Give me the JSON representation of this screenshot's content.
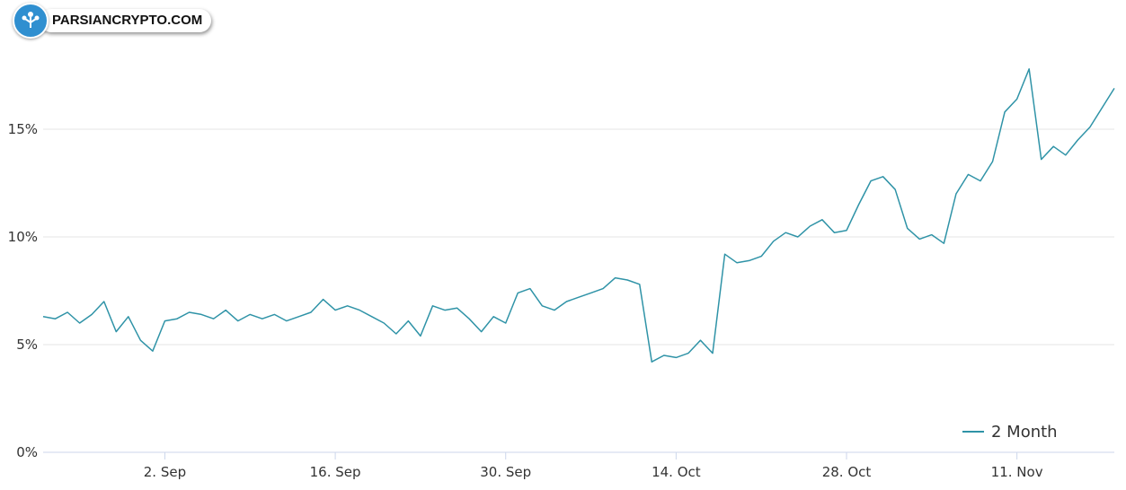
{
  "logo": {
    "text": "PARSIANCRYPTO.COM",
    "badge_color": "#2f8fd0"
  },
  "chart_data": {
    "type": "line",
    "title": "",
    "xlabel": "",
    "ylabel": "",
    "ylim": [
      0,
      20
    ],
    "yticks": [
      0,
      5,
      10,
      15
    ],
    "ytick_labels": [
      "0%",
      "5%",
      "10%",
      "15%"
    ],
    "xlim": [
      "2024-08-23",
      "2024-11-19"
    ],
    "xticks": [
      "2024-09-02",
      "2024-09-16",
      "2024-09-30",
      "2024-10-14",
      "2024-10-28",
      "2024-11-11"
    ],
    "xtick_labels": [
      "2. Sep",
      "16. Sep",
      "30. Sep",
      "14. Oct",
      "28. Oct",
      "11. Nov"
    ],
    "grid": "horizontal",
    "legend_position": "bottom-right",
    "colors": {
      "line": "#2f93a7",
      "grid": "#e6e6e6",
      "axis": "#ccd6eb"
    },
    "series": [
      {
        "name": "2 Month",
        "x": [
          "2024-08-23",
          "2024-08-24",
          "2024-08-25",
          "2024-08-26",
          "2024-08-27",
          "2024-08-28",
          "2024-08-29",
          "2024-08-30",
          "2024-08-31",
          "2024-09-01",
          "2024-09-02",
          "2024-09-03",
          "2024-09-04",
          "2024-09-05",
          "2024-09-06",
          "2024-09-07",
          "2024-09-08",
          "2024-09-09",
          "2024-09-10",
          "2024-09-11",
          "2024-09-12",
          "2024-09-13",
          "2024-09-14",
          "2024-09-15",
          "2024-09-16",
          "2024-09-17",
          "2024-09-18",
          "2024-09-19",
          "2024-09-20",
          "2024-09-21",
          "2024-09-22",
          "2024-09-23",
          "2024-09-24",
          "2024-09-25",
          "2024-09-26",
          "2024-09-27",
          "2024-09-28",
          "2024-09-29",
          "2024-09-30",
          "2024-10-01",
          "2024-10-02",
          "2024-10-03",
          "2024-10-04",
          "2024-10-05",
          "2024-10-06",
          "2024-10-07",
          "2024-10-08",
          "2024-10-09",
          "2024-10-10",
          "2024-10-11",
          "2024-10-12",
          "2024-10-13",
          "2024-10-14",
          "2024-10-15",
          "2024-10-16",
          "2024-10-17",
          "2024-10-18",
          "2024-10-19",
          "2024-10-20",
          "2024-10-21",
          "2024-10-22",
          "2024-10-23",
          "2024-10-24",
          "2024-10-25",
          "2024-10-26",
          "2024-10-27",
          "2024-10-28",
          "2024-10-29",
          "2024-10-30",
          "2024-10-31",
          "2024-11-01",
          "2024-11-02",
          "2024-11-03",
          "2024-11-04",
          "2024-11-05",
          "2024-11-06",
          "2024-11-07",
          "2024-11-08",
          "2024-11-09",
          "2024-11-10",
          "2024-11-11",
          "2024-11-12",
          "2024-11-13",
          "2024-11-14",
          "2024-11-15",
          "2024-11-16",
          "2024-11-17",
          "2024-11-18",
          "2024-11-19"
        ],
        "values": [
          6.3,
          6.2,
          6.5,
          6.0,
          6.4,
          7.0,
          5.6,
          6.3,
          5.2,
          4.7,
          6.1,
          6.2,
          6.5,
          6.4,
          6.2,
          6.6,
          6.1,
          6.4,
          6.2,
          6.4,
          6.1,
          6.3,
          6.5,
          7.1,
          6.6,
          6.8,
          6.6,
          6.3,
          6.0,
          5.5,
          6.1,
          5.4,
          6.8,
          6.6,
          6.7,
          6.2,
          5.6,
          6.3,
          6.0,
          7.4,
          7.6,
          6.8,
          6.6,
          7.0,
          7.2,
          7.4,
          7.6,
          8.1,
          8.0,
          7.8,
          4.2,
          4.5,
          4.4,
          4.6,
          5.2,
          4.6,
          9.2,
          8.8,
          8.9,
          9.1,
          9.8,
          10.2,
          10.0,
          10.5,
          10.8,
          10.2,
          10.3,
          11.5,
          12.6,
          12.8,
          12.2,
          10.4,
          9.9,
          10.1,
          9.7,
          12.0,
          12.9,
          12.6,
          13.5,
          15.8,
          16.4,
          17.8,
          13.6,
          14.2,
          13.8,
          14.5,
          15.1,
          16.0,
          16.9
        ]
      }
    ]
  }
}
